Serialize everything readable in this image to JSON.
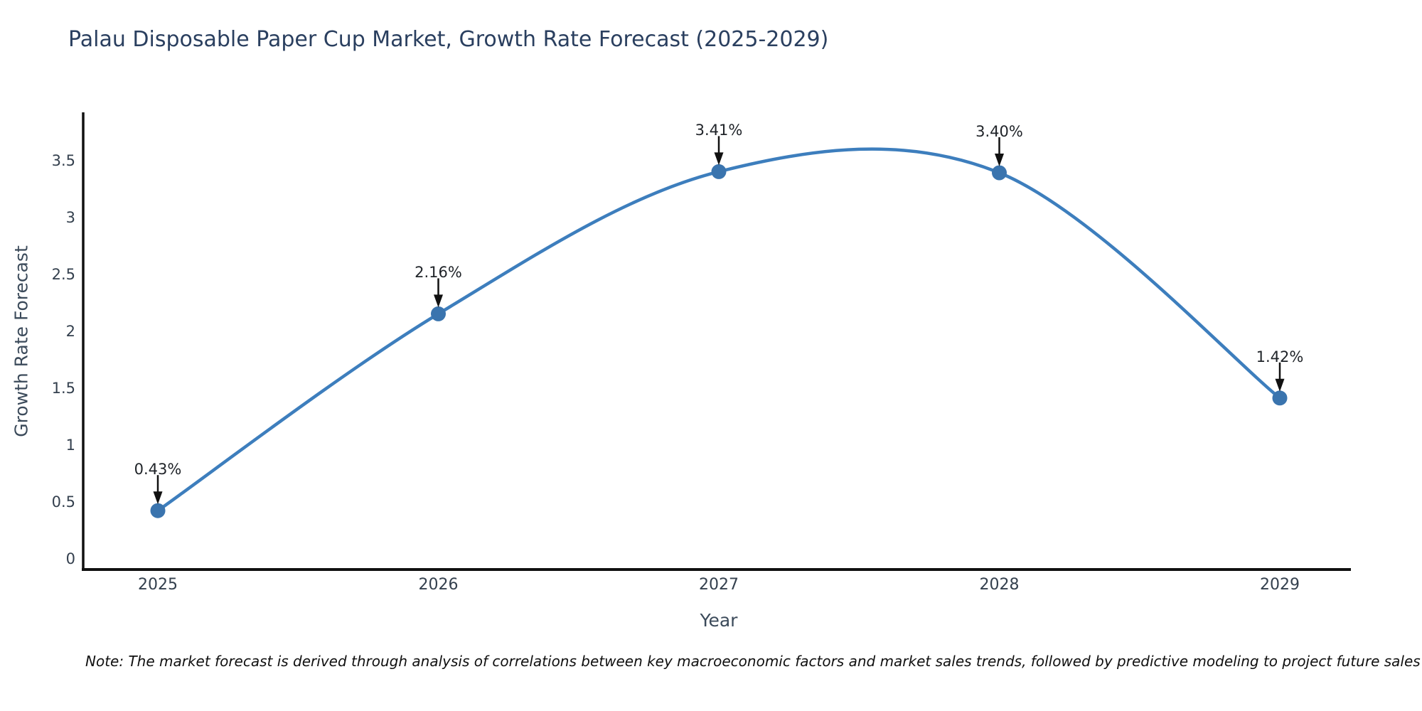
{
  "title": "Palau Disposable Paper Cup Market, Growth Rate Forecast (2025-2029)",
  "note": "Note: The market forecast is derived through analysis of correlations between key macroeconomic factors and market sales trends, followed by predictive modeling to project future sales",
  "chart_data": {
    "type": "line",
    "title": "Palau Disposable Paper Cup Market, Growth Rate Forecast (2025-2029)",
    "x": [
      2025,
      2026,
      2027,
      2028,
      2029
    ],
    "values": [
      0.43,
      2.16,
      3.41,
      3.4,
      1.42
    ],
    "point_labels": [
      "0.43%",
      "2.16%",
      "3.41%",
      "3.40%",
      "1.42%"
    ],
    "xtick_labels": [
      "2025",
      "2026",
      "2027",
      "2028",
      "2029"
    ],
    "ytick_values": [
      0,
      0.5,
      1,
      1.5,
      2,
      2.5,
      3,
      3.5
    ],
    "ytick_labels": [
      "0",
      "0.5",
      "1",
      "1.5",
      "2",
      "2.5",
      "3",
      "3.5"
    ],
    "xlabel": "Year",
    "ylabel": "Growth Rate Forecast",
    "ylim": [
      0,
      3.5
    ],
    "grid": false,
    "legend": false,
    "smooth_spline": true,
    "line_color": "#3d7ebd",
    "marker_color": "#3a74ae",
    "annotation_arrow_color": "#111111",
    "axis_color": "#111111",
    "background_color": "#ffffff"
  }
}
